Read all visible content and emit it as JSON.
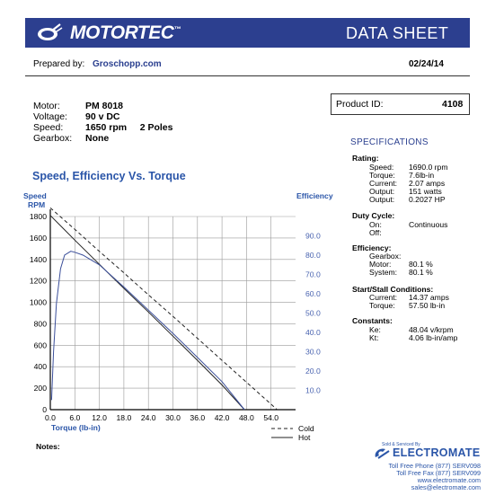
{
  "header": {
    "brand": "MOTORTEC",
    "trademark": "™",
    "title": "DATA SHEET",
    "logo_icon": "motor-plug-icon"
  },
  "prepared_by": {
    "label": "Prepared by:",
    "value": "Groschopp.com"
  },
  "date": "02/24/14",
  "motor_info": [
    {
      "label": "Motor:",
      "value": "PM  8018"
    },
    {
      "label": "Voltage:",
      "value": "90 v DC"
    },
    {
      "label": "Speed:",
      "value": "1650 rpm     2 Poles"
    },
    {
      "label": "Gearbox:",
      "value": "None"
    }
  ],
  "product": {
    "label": "Product ID:",
    "value": "4108"
  },
  "specifications": {
    "title": "SPECIFICATIONS",
    "rating": {
      "heading": "Rating:",
      "rows": [
        {
          "label": "Speed:",
          "value": "1690.0 rpm"
        },
        {
          "label": "Torque:",
          "value": "7.6lb-in"
        },
        {
          "label": "Current:",
          "value": "2.07 amps"
        },
        {
          "label": "Output:",
          "value": "151 watts"
        },
        {
          "label": "Output:",
          "value": "0.2027 HP"
        }
      ]
    },
    "duty_cycle": {
      "heading": "Duty Cycle:",
      "rows": [
        {
          "label": "On:",
          "value": "Continuous"
        },
        {
          "label": "Off:",
          "value": ""
        }
      ]
    },
    "efficiency": {
      "heading": "Efficiency:",
      "rows": [
        {
          "label": "Gearbox:",
          "value": ""
        },
        {
          "label": "Motor:",
          "value": "80.1 %"
        },
        {
          "label": "System:",
          "value": "80.1 %"
        }
      ]
    },
    "start_stall": {
      "heading": "Start/Stall Conditions:",
      "rows": [
        {
          "label": "Current:",
          "value": "14.37 amps"
        },
        {
          "label": "Torque:",
          "value": "57.50 lb-in"
        }
      ]
    },
    "constants": {
      "heading": "Constants:",
      "rows": [
        {
          "label": "Ke:",
          "value": "48.04 v/krpm"
        },
        {
          "label": "Kt:",
          "value": "4.06 lb-in/amp"
        }
      ]
    }
  },
  "notes_label": "Notes:",
  "distributor": {
    "sold_by": "Sold & Serviced By",
    "name": "ELECTROMATE",
    "lines": [
      "Toll Free Phone  (877) SERV098",
      "Toll Free Fax  (877) SERV099",
      "www.electromate.com",
      "sales@electromate.com"
    ]
  },
  "colors": {
    "header_bg": "#2c3f8f",
    "accent_blue": "#2a55a8",
    "efficiency_axis": "#4a64b0"
  },
  "chart_data": {
    "type": "line",
    "title": "Speed, Efficiency Vs. Torque",
    "xlabel": "Torque  (lb-in)",
    "ylabel": "Speed RPM",
    "y2label": "Efficiency",
    "xlim": [
      0,
      60
    ],
    "ylim": [
      0,
      1800
    ],
    "y2lim": [
      0,
      100
    ],
    "x_ticks": [
      "0.0",
      "6.0",
      "12.0",
      "18.0",
      "24.0",
      "30.0",
      "36.0",
      "42.0",
      "48.0",
      "54.0"
    ],
    "y_ticks": [
      "0",
      "200",
      "400",
      "600",
      "800",
      "1000",
      "1200",
      "1400",
      "1600",
      "1800"
    ],
    "y2_ticks": [
      "10.0",
      "20.0",
      "30.0",
      "40.0",
      "50.0",
      "60.0",
      "70.0",
      "80.0",
      "90.0"
    ],
    "grid": true,
    "legend": "bottom-right",
    "series": [
      {
        "name": "Cold",
        "style": "dashed",
        "axis": "left",
        "x": [
          0,
          6,
          12,
          18,
          24,
          30,
          36,
          42,
          48,
          55.5
        ],
        "y": [
          1880,
          1680,
          1475,
          1275,
          1070,
          870,
          665,
          460,
          255,
          0
        ]
      },
      {
        "name": "Hot",
        "style": "solid",
        "axis": "left",
        "x": [
          0,
          6,
          12,
          18,
          24,
          30,
          36,
          42,
          47.5
        ],
        "y": [
          1810,
          1580,
          1355,
          1130,
          910,
          685,
          460,
          230,
          0
        ]
      },
      {
        "name": "",
        "style": "solid",
        "axis": "right",
        "x": [
          0.3,
          0.8,
          1.5,
          2.5,
          3.5,
          5,
          6,
          8,
          12,
          18,
          24,
          30,
          36,
          42,
          47.5
        ],
        "y": [
          5,
          30,
          55,
          73,
          80,
          82,
          81.5,
          80,
          75,
          63.5,
          51.5,
          39.5,
          27,
          14.5,
          0
        ]
      }
    ]
  }
}
